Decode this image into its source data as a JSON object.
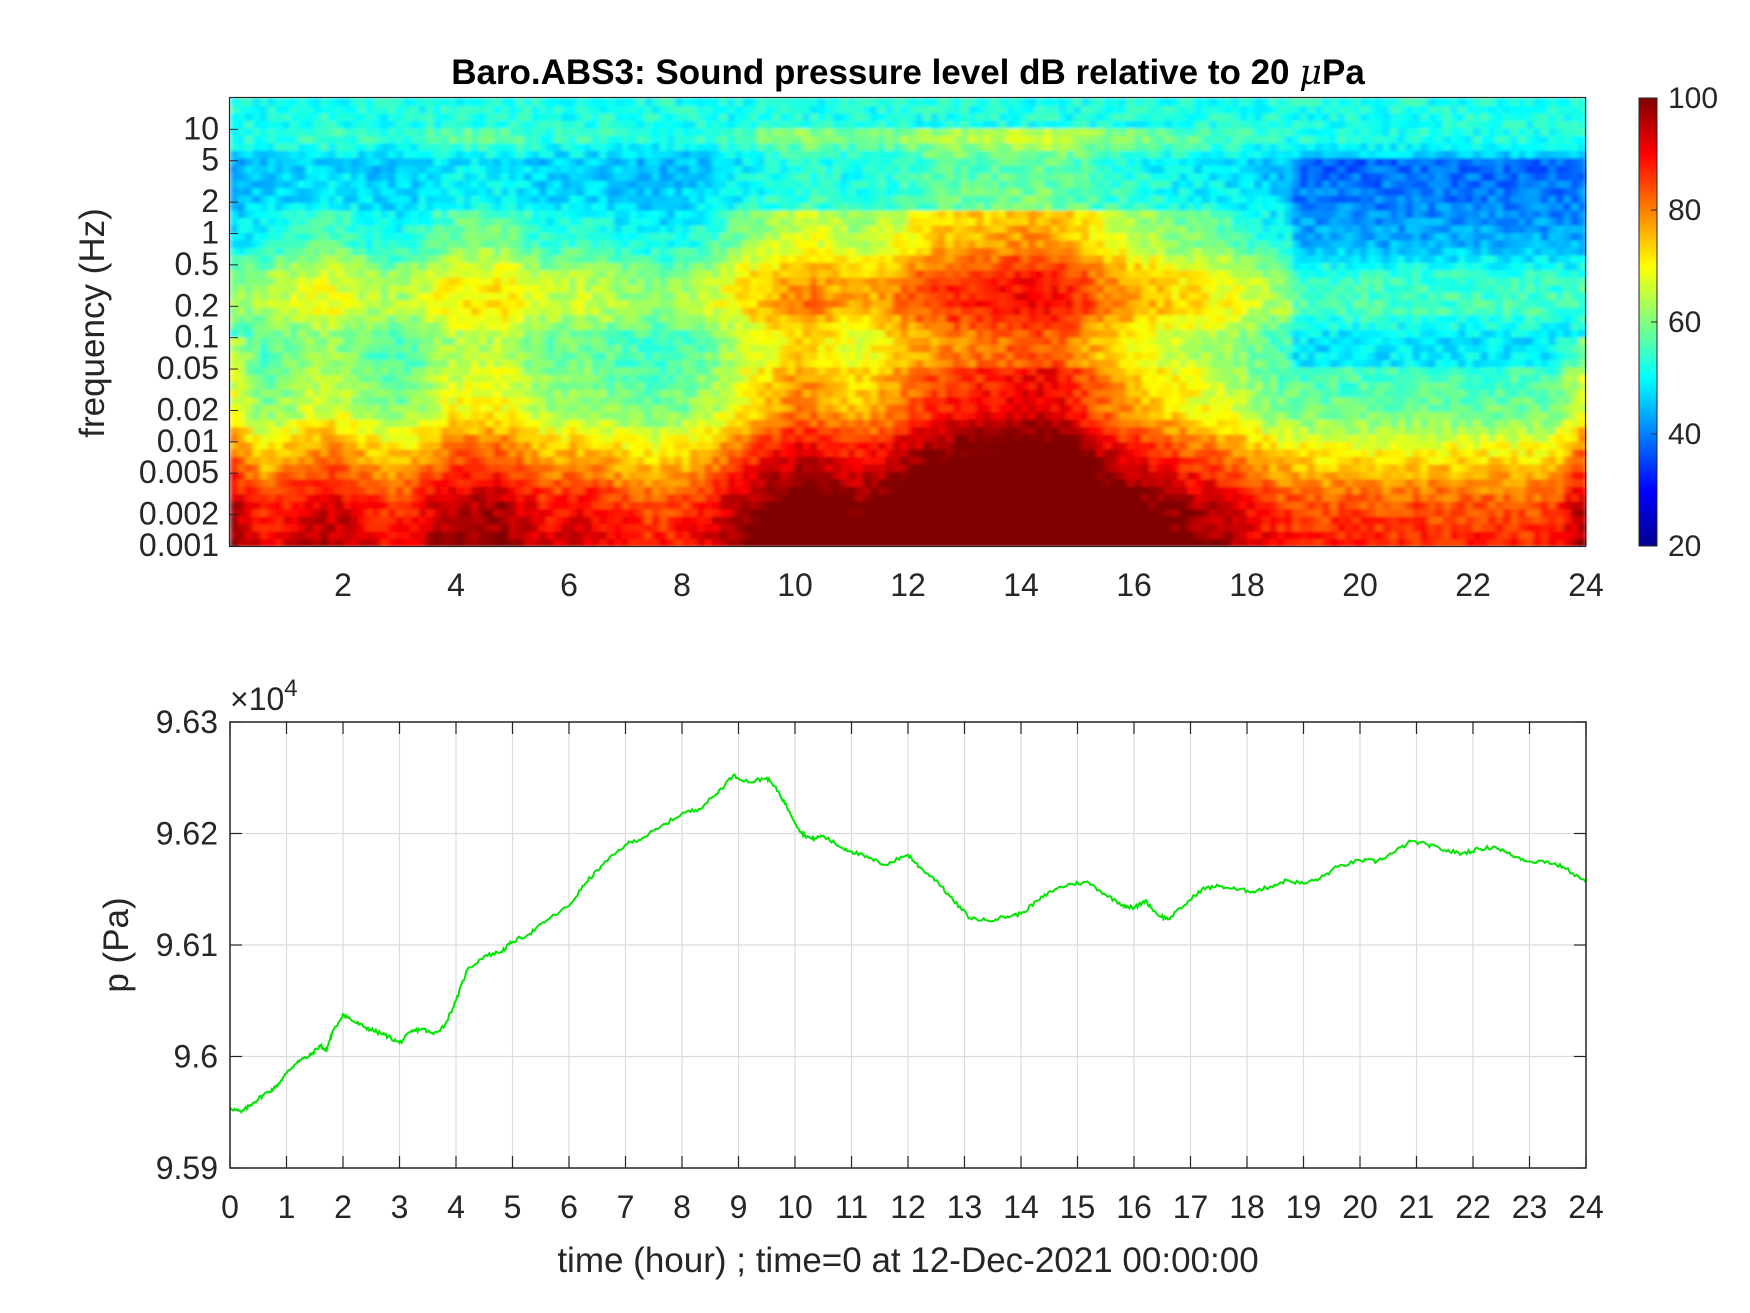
{
  "chart_data": [
    {
      "type": "heatmap",
      "title_main": "Baro.ABS3: Sound pressure level dB relative to 20 ",
      "title_mu": "μ",
      "title_unit": "Pa",
      "ylabel": "frequency (Hz)",
      "xlabel": "",
      "x_range": [
        0,
        24
      ],
      "x_ticks": [
        "2",
        "4",
        "6",
        "8",
        "10",
        "12",
        "14",
        "16",
        "18",
        "20",
        "22",
        "24"
      ],
      "y_scale": "log",
      "y_range": [
        0.001,
        20
      ],
      "y_ticks": [
        "10",
        "5",
        "2",
        "1",
        "0.5",
        "0.2",
        "0.1",
        "0.05",
        "0.02",
        "0.01",
        "0.005",
        "0.002",
        "0.001"
      ],
      "colormap": "jet",
      "color_range": [
        20,
        100
      ],
      "colorbar_ticks": [
        "100",
        "80",
        "60",
        "40",
        "20"
      ],
      "grid": false
    },
    {
      "type": "line",
      "title": "",
      "xlabel": "time (hour) ; time=0 at 12-Dec-2021 00:00:00",
      "ylabel": "p (Pa)",
      "y_multiplier": "×10",
      "y_multiplier_exp": "4",
      "xlim": [
        0,
        24
      ],
      "ylim": [
        95900,
        96300
      ],
      "x_ticks": [
        "0",
        "1",
        "2",
        "3",
        "4",
        "5",
        "6",
        "7",
        "8",
        "9",
        "10",
        "11",
        "12",
        "13",
        "14",
        "15",
        "16",
        "17",
        "18",
        "19",
        "20",
        "21",
        "22",
        "23",
        "24"
      ],
      "y_ticks": [
        "9.63",
        "9.62",
        "9.61",
        "9.6",
        "9.59"
      ],
      "grid": true,
      "line_color": "#00e600",
      "x": [
        0,
        0.2,
        0.4,
        0.6,
        0.8,
        1.0,
        1.2,
        1.4,
        1.6,
        1.7,
        1.8,
        2.0,
        2.2,
        2.4,
        2.6,
        2.8,
        3.0,
        3.2,
        3.4,
        3.6,
        3.8,
        4.0,
        4.2,
        4.5,
        4.8,
        5.0,
        5.3,
        5.6,
        6.0,
        6.3,
        6.6,
        7.0,
        7.3,
        7.6,
        8.0,
        8.3,
        8.6,
        8.9,
        9.2,
        9.5,
        9.7,
        9.9,
        10.1,
        10.3,
        10.5,
        10.8,
        11.0,
        11.3,
        11.6,
        12.0,
        12.2,
        12.5,
        12.8,
        13.1,
        13.4,
        13.7,
        14.0,
        14.3,
        14.6,
        14.9,
        15.2,
        15.5,
        15.8,
        16.0,
        16.2,
        16.4,
        16.6,
        16.9,
        17.2,
        17.5,
        17.8,
        18.1,
        18.4,
        18.7,
        19.0,
        19.3,
        19.6,
        20.0,
        20.3,
        20.6,
        20.9,
        21.2,
        21.5,
        21.8,
        22.1,
        22.4,
        22.7,
        23.0,
        23.3,
        23.6,
        24.0
      ],
      "y": [
        95954,
        95950,
        95958,
        95966,
        95972,
        95985,
        95996,
        96000,
        96010,
        96005,
        96020,
        96038,
        96031,
        96026,
        96022,
        96018,
        96012,
        96022,
        96025,
        96020,
        96028,
        96050,
        96078,
        96090,
        96094,
        96103,
        96110,
        96122,
        96135,
        96156,
        96172,
        96190,
        96196,
        96205,
        96218,
        96222,
        96235,
        96252,
        96246,
        96250,
        96238,
        96220,
        96201,
        96195,
        96198,
        96188,
        96184,
        96178,
        96172,
        96181,
        96170,
        96158,
        96140,
        96124,
        96122,
        96125,
        96128,
        96140,
        96150,
        96155,
        96156,
        96145,
        96136,
        96133,
        96140,
        96128,
        96123,
        96136,
        96150,
        96153,
        96150,
        96148,
        96152,
        96158,
        96155,
        96160,
        96170,
        96176,
        96175,
        96183,
        96193,
        96190,
        96185,
        96182,
        96186,
        96188,
        96180,
        96175,
        96175,
        96170,
        96156
      ]
    }
  ]
}
